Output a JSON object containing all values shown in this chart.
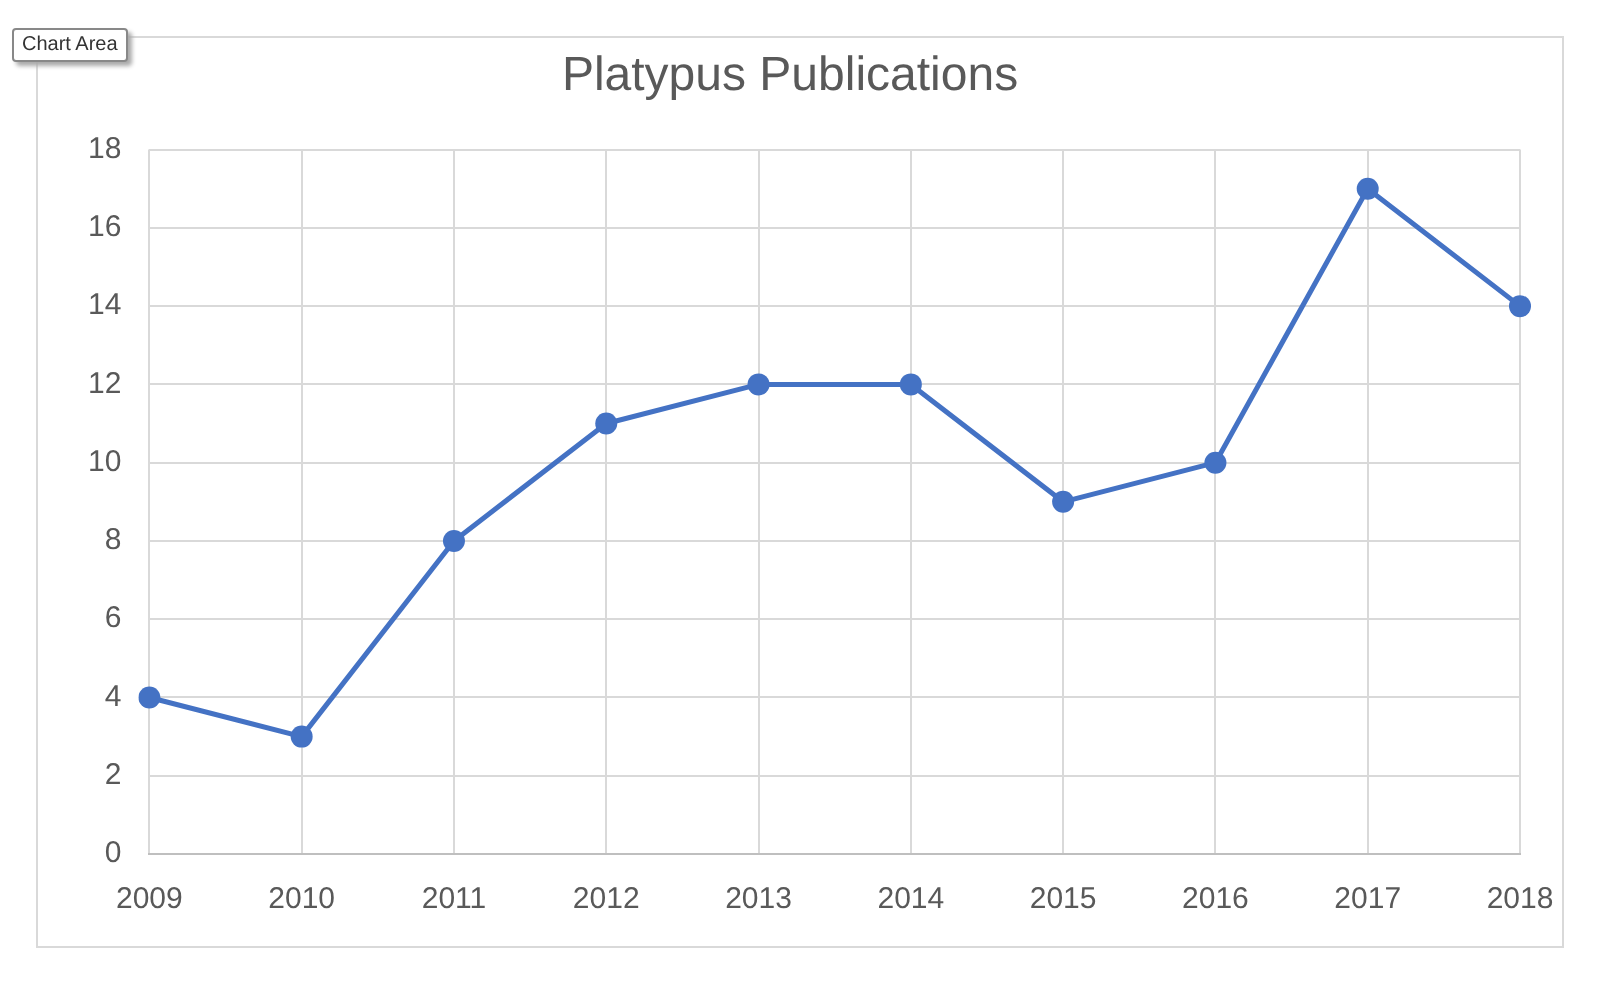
{
  "chart_data": {
    "type": "line",
    "title": "Platypus Publications",
    "categories": [
      "2009",
      "2010",
      "2011",
      "2012",
      "2013",
      "2014",
      "2015",
      "2016",
      "2017",
      "2018"
    ],
    "series": [
      {
        "color": "#4472c4",
        "values": [
          4,
          3,
          8,
          11,
          12,
          12,
          9,
          10,
          17,
          14
        ]
      }
    ],
    "ylim": [
      0,
      18
    ],
    "yticks": [
      0,
      2,
      4,
      6,
      8,
      10,
      12,
      14,
      16,
      18
    ],
    "grid": true,
    "legend": false,
    "marker": "circle",
    "line_style": "solid",
    "annotations": [
      "Chart Area"
    ]
  }
}
